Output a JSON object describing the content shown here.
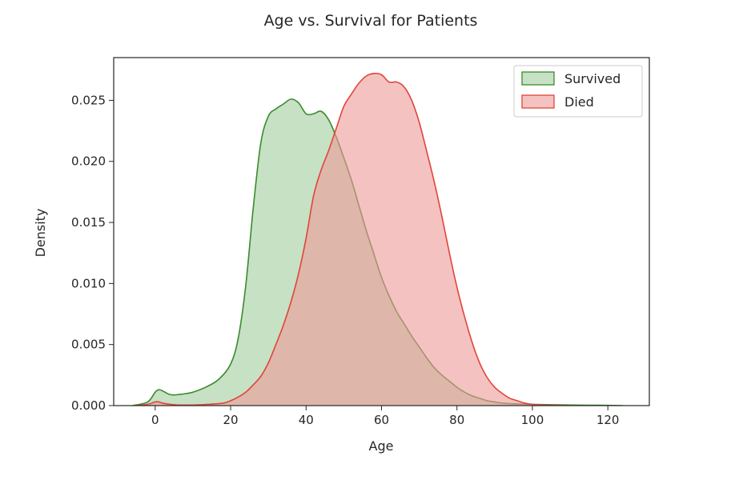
{
  "chart_data": {
    "type": "area",
    "title": "Age vs. Survival for Patients",
    "xlabel": "Age",
    "ylabel": "Density",
    "xlim": [
      -11,
      131
    ],
    "ylim": [
      0,
      0.0285
    ],
    "xticks": [
      0,
      20,
      40,
      60,
      80,
      100,
      120
    ],
    "xtick_labels": [
      "0",
      "20",
      "40",
      "60",
      "80",
      "100",
      "120"
    ],
    "yticks": [
      0,
      0.005,
      0.01,
      0.015,
      0.02,
      0.025
    ],
    "ytick_labels": [
      "0.000",
      "0.005",
      "0.010",
      "0.015",
      "0.020",
      "0.025"
    ],
    "grid": false,
    "legend_position": "top-right",
    "series": [
      {
        "name": "Survived",
        "line_color": "#3a8a2e",
        "fill_color": "#8fc48a",
        "fill_opacity": 0.5,
        "x": [
          -6,
          -2,
          0,
          1,
          2,
          4,
          6,
          10,
          14,
          17,
          20,
          22,
          24,
          26,
          28,
          30,
          32,
          34,
          36,
          38,
          40,
          42,
          44,
          46,
          48,
          50,
          52,
          54,
          56,
          58,
          60,
          62,
          64,
          66,
          68,
          70,
          72,
          74,
          76,
          78,
          80,
          82,
          84,
          86,
          88,
          90,
          92,
          95,
          100,
          105,
          110,
          115,
          120,
          124
        ],
        "y": [
          0,
          0.0003,
          0.0011,
          0.0013,
          0.0012,
          0.0009,
          0.0009,
          0.0011,
          0.0016,
          0.0022,
          0.0034,
          0.0055,
          0.0098,
          0.0162,
          0.0215,
          0.0237,
          0.0243,
          0.0247,
          0.0251,
          0.0248,
          0.0239,
          0.0239,
          0.0241,
          0.0234,
          0.022,
          0.0203,
          0.0185,
          0.0164,
          0.0143,
          0.0124,
          0.0105,
          0.009,
          0.0077,
          0.0067,
          0.0057,
          0.0048,
          0.0039,
          0.0031,
          0.0025,
          0.002,
          0.0015,
          0.0011,
          0.0008,
          0.0006,
          0.0004,
          0.0003,
          0.0002,
          0.00015,
          0.0001,
          7e-05,
          5e-05,
          3e-05,
          2e-05,
          0
        ]
      },
      {
        "name": "Died",
        "line_color": "#e0443a",
        "fill_color": "#ef9a9a",
        "fill_opacity": 0.6,
        "x": [
          -5,
          -2,
          0,
          1,
          2,
          4,
          6,
          10,
          14,
          18,
          20,
          22,
          24,
          26,
          28,
          30,
          32,
          34,
          36,
          38,
          40,
          42,
          44,
          46,
          48,
          50,
          52,
          54,
          56,
          58,
          60,
          62,
          64,
          66,
          68,
          70,
          72,
          74,
          76,
          78,
          80,
          82,
          84,
          86,
          88,
          90,
          92,
          94,
          96,
          98,
          100,
          103,
          106,
          109
        ],
        "y": [
          0,
          0.0001,
          0.0003,
          0.0003,
          0.0002,
          0.0001,
          5e-05,
          5e-05,
          0.0001,
          0.0002,
          0.0004,
          0.0007,
          0.0011,
          0.0017,
          0.0024,
          0.0035,
          0.005,
          0.0066,
          0.0085,
          0.0108,
          0.0137,
          0.0172,
          0.0193,
          0.0209,
          0.0227,
          0.0245,
          0.0255,
          0.0264,
          0.027,
          0.0272,
          0.0271,
          0.0265,
          0.0265,
          0.0261,
          0.025,
          0.0232,
          0.0208,
          0.0183,
          0.0155,
          0.0125,
          0.0097,
          0.0073,
          0.0052,
          0.0035,
          0.0023,
          0.0015,
          0.001,
          0.0006,
          0.0004,
          0.0002,
          0.0001,
          5e-05,
          2e-05,
          0
        ]
      }
    ]
  }
}
